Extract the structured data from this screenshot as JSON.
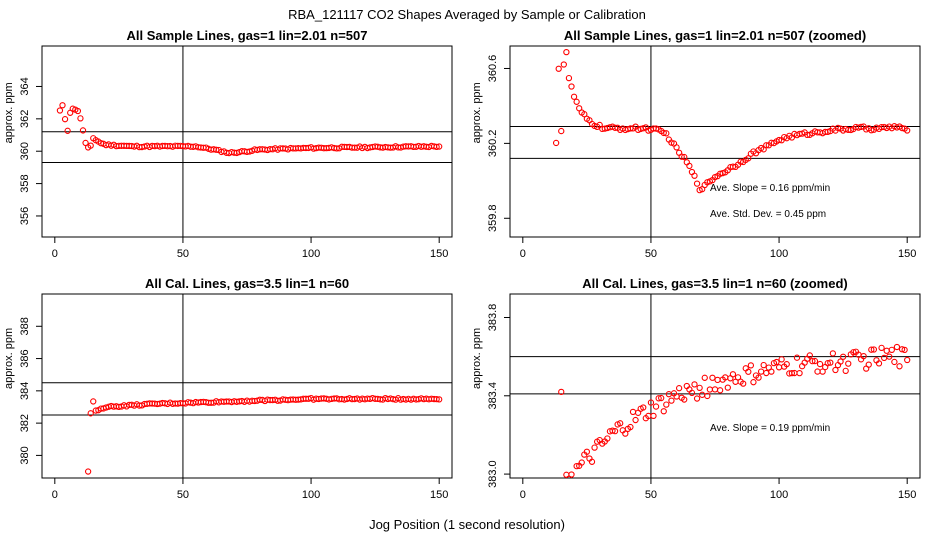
{
  "figure": {
    "title": "RBA_121117  CO2 Shapes Averaged by Sample or Calibration",
    "xlabel": "Jog Position (1 second resolution)"
  },
  "chart_data": [
    {
      "type": "scatter",
      "title": "All Sample Lines, gas=1 lin=2.01 n=507",
      "ylabel": "approx. ppm",
      "xlim": [
        -5,
        155
      ],
      "ylim": [
        354.7,
        366.5
      ],
      "xticks": [
        0,
        50,
        100,
        150
      ],
      "yticks": [
        356,
        358,
        360,
        362,
        364
      ],
      "vline": 50,
      "hlines": [
        361.2,
        359.3
      ],
      "annotations": [],
      "points": {
        "generator": "segments",
        "x_range": [
          2,
          150
        ],
        "step": 1,
        "segments": [
          [
            2,
            362.5
          ],
          [
            3,
            362.8
          ],
          [
            4,
            362.0
          ],
          [
            5,
            361.3
          ],
          [
            6,
            362.4
          ],
          [
            7,
            362.6
          ],
          [
            8,
            362.6
          ],
          [
            9,
            362.5
          ],
          [
            10,
            362.0
          ],
          [
            11,
            361.3
          ],
          [
            12,
            360.5
          ],
          [
            13,
            360.2
          ],
          [
            14,
            360.3
          ],
          [
            15,
            360.8
          ],
          [
            16,
            360.7
          ],
          [
            18,
            360.5
          ],
          [
            20,
            360.4
          ],
          [
            30,
            360.3
          ],
          [
            55,
            360.3
          ],
          [
            62,
            360.1
          ],
          [
            68,
            359.9
          ],
          [
            72,
            359.95
          ],
          [
            80,
            360.1
          ],
          [
            100,
            360.2
          ],
          [
            150,
            360.3
          ]
        ],
        "noise": 0.05
      }
    },
    {
      "type": "scatter",
      "title": "All Sample Lines, gas=1 lin=2.01 n=507 (zoomed)",
      "ylabel": "approx. ppm",
      "xlim": [
        -5,
        155
      ],
      "ylim": [
        359.7,
        360.72
      ],
      "xticks": [
        0,
        50,
        100,
        150
      ],
      "yticks": [
        359.8,
        360.2,
        360.6
      ],
      "vline": 50,
      "hlines": [
        360.29,
        360.12
      ],
      "annotations": [
        "Ave. Slope =  0.16  ppm/min",
        "Ave. Std. Dev. =  0.45  ppm"
      ],
      "points": {
        "generator": "segments",
        "x_range": [
          13,
          150
        ],
        "step": 1,
        "segments": [
          [
            13,
            360.21
          ],
          [
            14,
            360.6
          ],
          [
            15,
            360.27
          ],
          [
            16,
            360.62
          ],
          [
            17,
            360.68
          ],
          [
            18,
            360.55
          ],
          [
            20,
            360.45
          ],
          [
            22,
            360.38
          ],
          [
            25,
            360.33
          ],
          [
            28,
            360.3
          ],
          [
            32,
            360.28
          ],
          [
            40,
            360.28
          ],
          [
            48,
            360.28
          ],
          [
            52,
            360.27
          ],
          [
            56,
            360.25
          ],
          [
            60,
            360.17
          ],
          [
            64,
            360.1
          ],
          [
            67,
            360.02
          ],
          [
            69,
            359.96
          ],
          [
            71,
            359.97
          ],
          [
            73,
            360.0
          ],
          [
            76,
            360.03
          ],
          [
            80,
            360.06
          ],
          [
            85,
            360.1
          ],
          [
            90,
            360.15
          ],
          [
            95,
            360.18
          ],
          [
            100,
            360.22
          ],
          [
            105,
            360.24
          ],
          [
            110,
            360.25
          ],
          [
            120,
            360.27
          ],
          [
            130,
            360.28
          ],
          [
            140,
            360.28
          ],
          [
            147,
            360.29
          ],
          [
            150,
            360.26
          ]
        ],
        "noise": 0.01
      }
    },
    {
      "type": "scatter",
      "title": "All Cal. Lines, gas=3.5 lin=1 n=60",
      "ylabel": "approx. ppm",
      "xlim": [
        -5,
        155
      ],
      "ylim": [
        378.6,
        390.0
      ],
      "xticks": [
        0,
        50,
        100,
        150
      ],
      "yticks": [
        380,
        382,
        384,
        386,
        388
      ],
      "vline": 50,
      "hlines": [
        384.5,
        382.5
      ],
      "annotations": [],
      "points": {
        "generator": "segments",
        "x_range": [
          14,
          150
        ],
        "step": 1,
        "segments": [
          [
            14,
            382.6
          ],
          [
            15,
            383.3
          ],
          [
            16,
            382.8
          ],
          [
            18,
            382.9
          ],
          [
            20,
            383.0
          ],
          [
            30,
            383.1
          ],
          [
            40,
            383.2
          ],
          [
            50,
            383.25
          ],
          [
            60,
            383.3
          ],
          [
            80,
            383.4
          ],
          [
            100,
            383.5
          ],
          [
            120,
            383.5
          ],
          [
            150,
            383.5
          ]
        ],
        "extra": [
          [
            13,
            379.0
          ]
        ],
        "noise": 0.05
      }
    },
    {
      "type": "scatter",
      "title": "All Cal. Lines, gas=3.5 lin=1 n=60 (zoomed)",
      "ylabel": "approx. ppm",
      "xlim": [
        -5,
        155
      ],
      "ylim": [
        382.98,
        383.92
      ],
      "xticks": [
        0,
        50,
        100,
        150
      ],
      "yticks": [
        383.0,
        383.4,
        383.8
      ],
      "vline": 50,
      "hlines": [
        383.6,
        383.41
      ],
      "annotations": [
        "Ave. Slope =  0.19  ppm/min"
      ],
      "points": {
        "generator": "segments",
        "x_range": [
          16,
          150
        ],
        "step": 1,
        "segments": [
          [
            16,
            383.0
          ],
          [
            20,
            383.0
          ],
          [
            25,
            383.07
          ],
          [
            30,
            383.13
          ],
          [
            35,
            383.2
          ],
          [
            40,
            383.25
          ],
          [
            45,
            383.29
          ],
          [
            50,
            383.33
          ],
          [
            55,
            383.36
          ],
          [
            60,
            383.4
          ],
          [
            70,
            383.44
          ],
          [
            80,
            383.48
          ],
          [
            90,
            383.51
          ],
          [
            100,
            383.54
          ],
          [
            110,
            383.56
          ],
          [
            120,
            383.57
          ],
          [
            130,
            383.58
          ],
          [
            140,
            383.6
          ],
          [
            150,
            383.6
          ]
        ],
        "extra": [
          [
            15,
            383.42
          ]
        ],
        "noise": 0.05
      }
    }
  ]
}
